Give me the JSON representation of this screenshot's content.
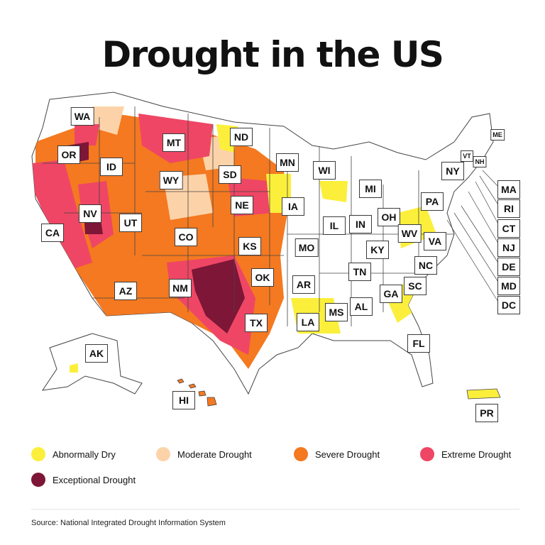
{
  "title": "Drought in the US",
  "states": [
    {
      "abbr": "WA"
    },
    {
      "abbr": "OR"
    },
    {
      "abbr": "CA"
    },
    {
      "abbr": "ID"
    },
    {
      "abbr": "NV"
    },
    {
      "abbr": "MT"
    },
    {
      "abbr": "WY"
    },
    {
      "abbr": "UT"
    },
    {
      "abbr": "AZ"
    },
    {
      "abbr": "CO"
    },
    {
      "abbr": "NM"
    },
    {
      "abbr": "ND"
    },
    {
      "abbr": "SD"
    },
    {
      "abbr": "NE"
    },
    {
      "abbr": "KS"
    },
    {
      "abbr": "OK"
    },
    {
      "abbr": "TX"
    },
    {
      "abbr": "MN"
    },
    {
      "abbr": "IA"
    },
    {
      "abbr": "MO"
    },
    {
      "abbr": "AR"
    },
    {
      "abbr": "LA"
    },
    {
      "abbr": "WI"
    },
    {
      "abbr": "IL"
    },
    {
      "abbr": "MI"
    },
    {
      "abbr": "IN"
    },
    {
      "abbr": "OH"
    },
    {
      "abbr": "KY"
    },
    {
      "abbr": "TN"
    },
    {
      "abbr": "MS"
    },
    {
      "abbr": "AL"
    },
    {
      "abbr": "GA"
    },
    {
      "abbr": "FL"
    },
    {
      "abbr": "SC"
    },
    {
      "abbr": "NC"
    },
    {
      "abbr": "VA"
    },
    {
      "abbr": "WV"
    },
    {
      "abbr": "PA"
    },
    {
      "abbr": "NY"
    },
    {
      "abbr": "VT"
    },
    {
      "abbr": "NH"
    },
    {
      "abbr": "ME"
    },
    {
      "abbr": "MA"
    },
    {
      "abbr": "RI"
    },
    {
      "abbr": "CT"
    },
    {
      "abbr": "NJ"
    },
    {
      "abbr": "DE"
    },
    {
      "abbr": "MD"
    },
    {
      "abbr": "DC"
    },
    {
      "abbr": "AK"
    },
    {
      "abbr": "HI"
    },
    {
      "abbr": "PR"
    }
  ],
  "legend": [
    {
      "label": "Abnormally Dry",
      "color": "#fbef3b"
    },
    {
      "label": "Moderate Drought",
      "color": "#fcd3a9"
    },
    {
      "label": "Severe Drought",
      "color": "#f47920"
    },
    {
      "label": "Extreme Drought",
      "color": "#ef4665"
    },
    {
      "label": "Exceptional Drought",
      "color": "#7d1637"
    }
  ],
  "source": "Source: National Integrated Drought Information System"
}
